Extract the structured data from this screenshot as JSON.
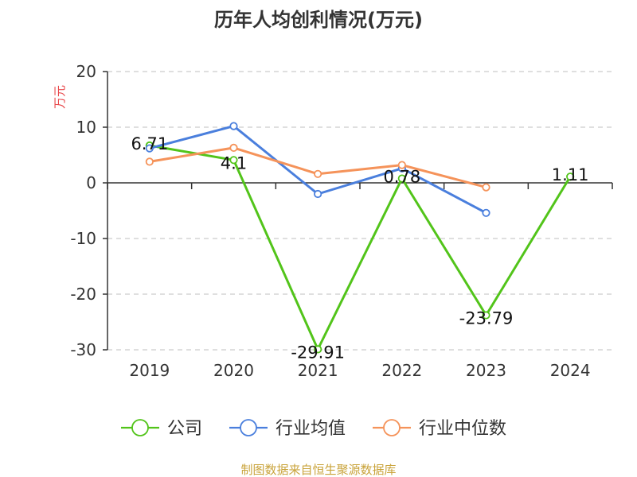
{
  "chart_data": {
    "type": "line",
    "title": "历年人均创利情况(万元)",
    "ylabel": "万元",
    "xlabel": "",
    "categories": [
      "2019",
      "2020",
      "2021",
      "2022",
      "2023",
      "2024"
    ],
    "ylim": [
      -30,
      20
    ],
    "yticks": [
      20,
      10,
      0,
      -10,
      -20,
      -30
    ],
    "grid": true,
    "legend_position": "bottom",
    "series": [
      {
        "name": "公司",
        "color": "#52c41a",
        "values": [
          6.71,
          4.1,
          -29.91,
          0.78,
          -23.79,
          1.11
        ],
        "labels": [
          "6.71",
          "4.1",
          "-29.91",
          "0.78",
          "-23.79",
          "1.11"
        ]
      },
      {
        "name": "行业均值",
        "color": "#4a7fdd",
        "values": [
          6.2,
          10.2,
          -2.0,
          2.6,
          -5.4,
          null
        ]
      },
      {
        "name": "行业中位数",
        "color": "#f5935a",
        "values": [
          3.8,
          6.3,
          1.6,
          3.2,
          -0.8,
          null
        ]
      }
    ],
    "source": "制图数据来自恒生聚源数据库"
  }
}
